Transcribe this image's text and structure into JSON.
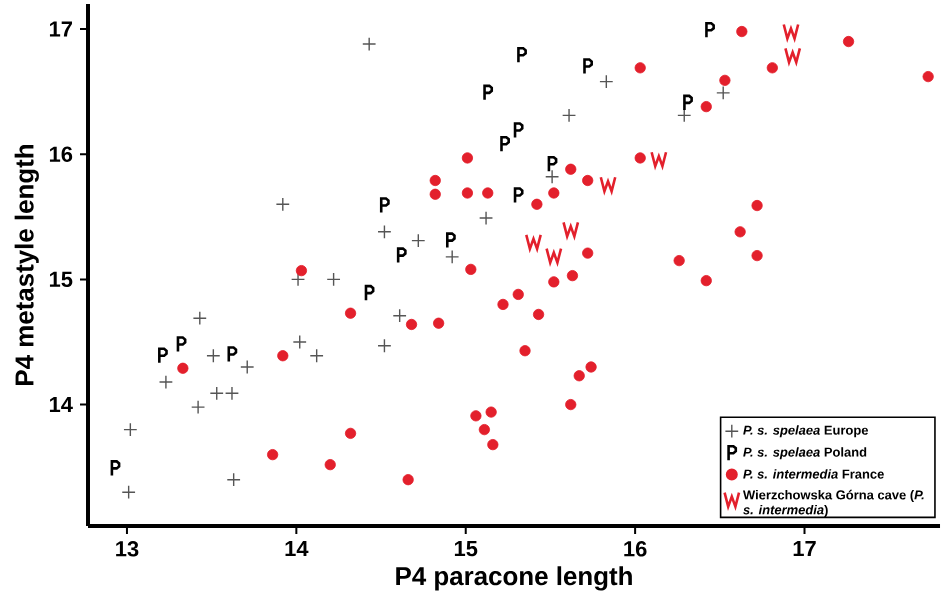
{
  "chart_data": {
    "type": "scatter",
    "xlabel": "P4 paracone  length",
    "ylabel": "P4 metastyle length",
    "xlim": [
      12.77,
      17.8
    ],
    "ylim": [
      13.03,
      17.2
    ],
    "xticks": [
      13,
      14,
      15,
      16,
      17
    ],
    "yticks": [
      14,
      15,
      16,
      17
    ],
    "legend": "bottom right",
    "series": [
      {
        "name": "*P. s. spelaea* Europe",
        "color": "#555555",
        "marker": "cross",
        "x": [
          14.43,
          13.92,
          14.52,
          14.72,
          14.92,
          15.12,
          14.01,
          14.22,
          13.43,
          14.61,
          14.52,
          14.02,
          14.12,
          13.51,
          13.71,
          13.23,
          13.53,
          13.62,
          13.42,
          13.02,
          13.01,
          13.63,
          15.83,
          15.61,
          16.29,
          16.52,
          15.51
        ],
        "values": [
          16.88,
          15.6,
          15.38,
          15.31,
          15.18,
          15.49,
          15.0,
          15.0,
          14.69,
          14.71,
          14.47,
          14.5,
          14.39,
          14.39,
          14.3,
          14.18,
          14.09,
          14.09,
          13.98,
          13.8,
          13.3,
          13.4,
          16.58,
          16.31,
          16.31,
          16.49,
          15.82
        ]
      },
      {
        "name": "*P. s. spelaea* Poland",
        "color": "#000000",
        "x": [
          15.33,
          15.13,
          15.31,
          15.23,
          15.31,
          14.52,
          14.62,
          14.91,
          14.43,
          13.21,
          13.32,
          13.62,
          12.93,
          16.44,
          15.72,
          16.31,
          15.51
        ],
        "values": [
          16.79,
          16.49,
          16.19,
          16.08,
          15.67,
          15.59,
          15.19,
          15.31,
          14.89,
          14.39,
          14.48,
          14.4,
          13.49,
          16.99,
          16.7,
          16.41,
          15.92
        ]
      },
      {
        "name": "*P. s. intermedia* France",
        "color": "#e3202c",
        "marker": "circle",
        "x": [
          15.01,
          14.82,
          14.82,
          15.01,
          15.13,
          15.03,
          14.03,
          14.32,
          14.68,
          14.84,
          15.22,
          15.31,
          13.33,
          13.92,
          15.06,
          15.15,
          15.11,
          15.16,
          14.32,
          13.86,
          14.2,
          14.66,
          16.63,
          17.26,
          17.73,
          16.81,
          16.53,
          16.42,
          16.03,
          16.03,
          15.62,
          15.72,
          15.52,
          15.42,
          16.72,
          16.62,
          16.72,
          16.26,
          16.42,
          15.72,
          15.63,
          15.52,
          15.43,
          15.35,
          15.74,
          15.67,
          15.62
        ],
        "values": [
          15.97,
          15.79,
          15.68,
          15.69,
          15.69,
          15.08,
          15.07,
          14.73,
          14.64,
          14.65,
          14.8,
          14.88,
          14.29,
          14.39,
          13.91,
          13.94,
          13.8,
          13.68,
          13.77,
          13.6,
          13.52,
          13.4,
          16.98,
          16.9,
          16.62,
          16.69,
          16.59,
          16.38,
          16.69,
          15.97,
          15.88,
          15.79,
          15.69,
          15.6,
          15.59,
          15.38,
          15.19,
          15.15,
          14.99,
          15.21,
          15.03,
          14.98,
          14.72,
          14.43,
          14.3,
          14.23,
          14.0
        ]
      },
      {
        "name": "Wierzchowska Górna cave (*P. s. intermedia*)",
        "color": "#e3202c",
        "x": [
          16.92,
          16.93,
          16.14,
          15.84,
          15.62,
          15.4,
          15.52
        ],
        "values": [
          16.98,
          16.79,
          15.96,
          15.76,
          15.4,
          15.3,
          15.19
        ]
      }
    ]
  }
}
